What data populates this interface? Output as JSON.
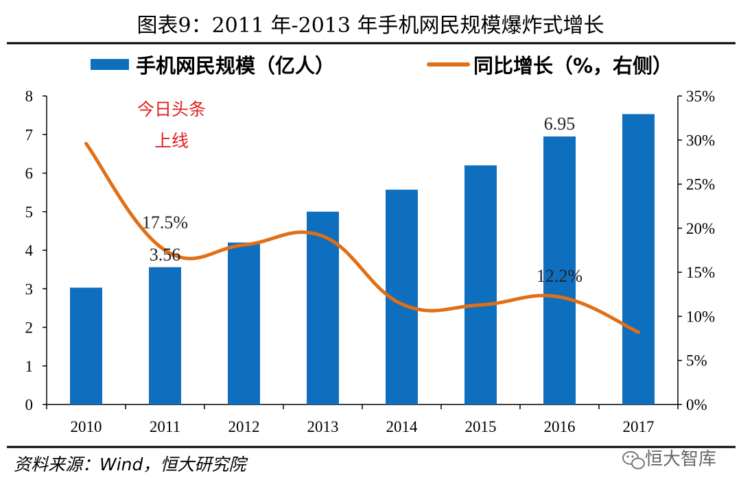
{
  "chart_data": {
    "type": "bar",
    "title": "图表9：2011 年-2013 年手机网民规模爆炸式增长",
    "categories": [
      "2010",
      "2011",
      "2012",
      "2013",
      "2014",
      "2015",
      "2016",
      "2017"
    ],
    "series": [
      {
        "name": "手机网民规模（亿人）",
        "type": "bar",
        "axis": "left",
        "color": "#0f6fbf",
        "values": [
          3.03,
          3.56,
          4.2,
          5.0,
          5.57,
          6.2,
          6.95,
          7.53
        ]
      },
      {
        "name": "同比增长（%，右侧）",
        "type": "line",
        "axis": "right",
        "color": "#e06f16",
        "values": [
          29.6,
          17.5,
          18.1,
          19.1,
          11.4,
          11.3,
          12.2,
          8.2
        ]
      }
    ],
    "y_left": {
      "min": 0,
      "max": 8,
      "ticks": [
        "0",
        "1",
        "2",
        "3",
        "4",
        "5",
        "6",
        "7",
        "8"
      ]
    },
    "y_right": {
      "min": 0,
      "max": 35,
      "ticks": [
        "0%",
        "5%",
        "10%",
        "15%",
        "20%",
        "25%",
        "30%",
        "35%"
      ]
    },
    "data_labels": [
      {
        "text": "17.5%",
        "series": 1,
        "index": 1
      },
      {
        "text": "3.56",
        "series": 0,
        "index": 1
      },
      {
        "text": "6.95",
        "series": 0,
        "index": 6
      },
      {
        "text": "12.2%",
        "series": 1,
        "index": 6
      }
    ],
    "annotation": {
      "lines": [
        "今日头条",
        "上线"
      ],
      "color": "#e02020"
    },
    "legend_position": "top",
    "grid": false
  },
  "source": "资料来源：Wind，恒大研究院",
  "watermark": "恒大智库"
}
